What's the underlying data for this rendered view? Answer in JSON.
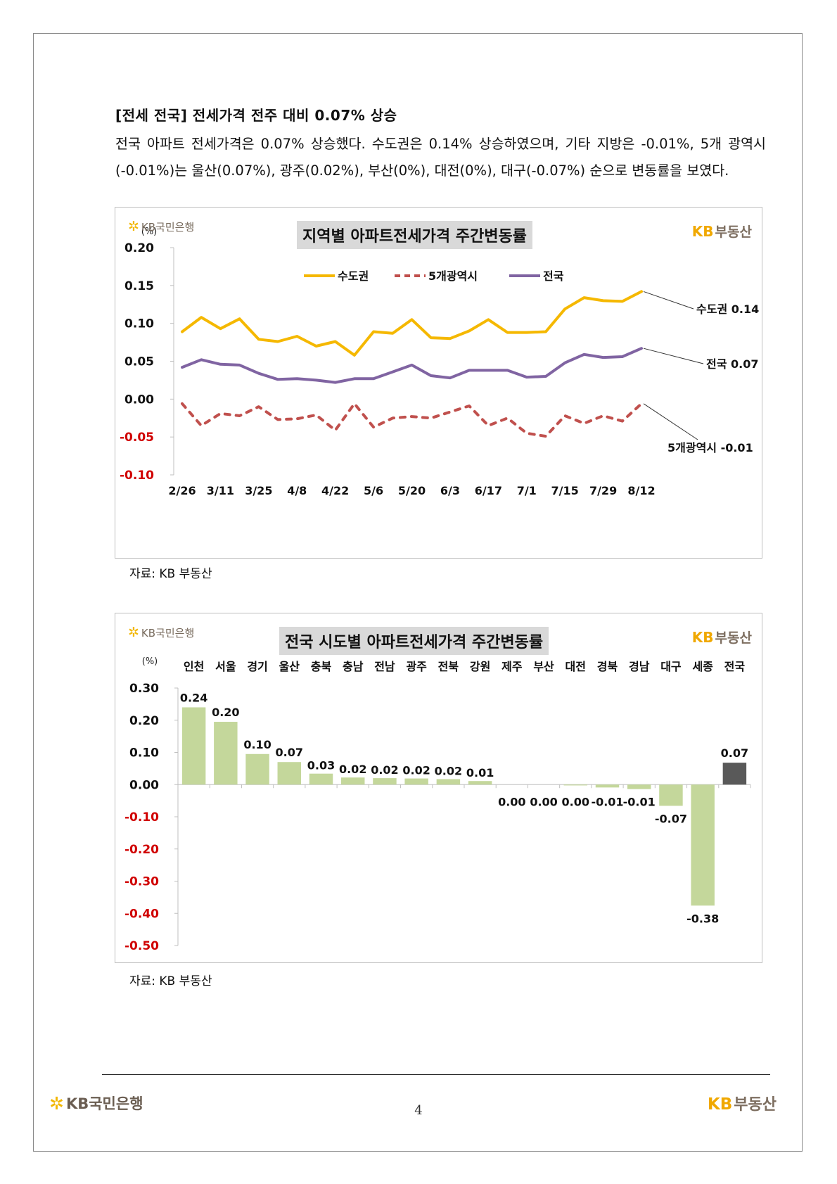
{
  "report": {
    "heading": "[전세 전국] 전세가격 전주 대비 0.07% 상승",
    "body": "전국 아파트 전세가격은 0.07% 상승했다. 수도권은 0.14% 상승하였으며, 기타 지방은 -0.01%, 5개 광역시(-0.01%)는 울산(0.07%), 광주(0.02%), 부산(0%), 대전(0%), 대구(-0.07%) 순으로 변동률을 보였다."
  },
  "branding": {
    "kb_bank": "KB국민은행",
    "kb_short": "KB",
    "realty_name": "부동산",
    "star_icon": "kb-star-icon"
  },
  "colors": {
    "sudogwon": "#f5b800",
    "metro5": "#c0504d",
    "national": "#8064a2",
    "bar_fill": "#c4d79b",
    "bar_national": "#595959",
    "negative_tick": "#d00000",
    "title_bg": "#d9d9d9"
  },
  "chart1_meta": {
    "source": "자료: KB 부동산"
  },
  "chart2_meta": {
    "source": "자료: KB 부동산"
  },
  "footer": {
    "page_number": "4"
  },
  "chart_data": [
    {
      "type": "line",
      "title": "지역별 아파트전세가격 주간변동률",
      "unit": "(%)",
      "ylim": [
        -0.1,
        0.2
      ],
      "yticks": [
        {
          "value": 0.2,
          "label": "0.20"
        },
        {
          "value": 0.15,
          "label": "0.15"
        },
        {
          "value": 0.1,
          "label": "0.10"
        },
        {
          "value": 0.05,
          "label": "0.05"
        },
        {
          "value": 0.0,
          "label": "0.00"
        },
        {
          "value": -0.05,
          "label": "-0.05"
        },
        {
          "value": -0.1,
          "label": "-0.10"
        }
      ],
      "x_count": 25,
      "xticks": [
        {
          "index": 0,
          "label": "2/26"
        },
        {
          "index": 2,
          "label": "3/11"
        },
        {
          "index": 4,
          "label": "3/25"
        },
        {
          "index": 6,
          "label": "4/8"
        },
        {
          "index": 8,
          "label": "4/22"
        },
        {
          "index": 10,
          "label": "5/6"
        },
        {
          "index": 12,
          "label": "5/20"
        },
        {
          "index": 14,
          "label": "6/3"
        },
        {
          "index": 16,
          "label": "6/17"
        },
        {
          "index": 18,
          "label": "7/1"
        },
        {
          "index": 20,
          "label": "7/15"
        },
        {
          "index": 22,
          "label": "7/29"
        },
        {
          "index": 24,
          "label": "8/12"
        }
      ],
      "legend_position": "top-center",
      "series": [
        {
          "key": "sudogwon",
          "name": "수도권",
          "style": "solid",
          "end_label": "수도권 0.14",
          "values": [
            0.089,
            0.108,
            0.093,
            0.106,
            0.079,
            0.076,
            0.083,
            0.07,
            0.076,
            0.058,
            0.089,
            0.087,
            0.105,
            0.081,
            0.08,
            0.09,
            0.105,
            0.088,
            0.088,
            0.089,
            0.119,
            0.134,
            0.13,
            0.129,
            0.142
          ]
        },
        {
          "key": "metro5",
          "name": "5개광역시",
          "style": "dashed",
          "end_label": "5개광역시 -0.01",
          "values": [
            -0.006,
            -0.035,
            -0.019,
            -0.022,
            -0.01,
            -0.027,
            -0.026,
            -0.021,
            -0.041,
            -0.006,
            -0.037,
            -0.025,
            -0.023,
            -0.025,
            -0.017,
            -0.009,
            -0.035,
            -0.025,
            -0.045,
            -0.049,
            -0.022,
            -0.032,
            -0.022,
            -0.029,
            -0.006
          ]
        },
        {
          "key": "national",
          "name": "전국",
          "style": "solid",
          "end_label": "전국 0.07",
          "values": [
            0.042,
            0.052,
            0.046,
            0.045,
            0.034,
            0.026,
            0.027,
            0.025,
            0.022,
            0.027,
            0.027,
            0.036,
            0.045,
            0.031,
            0.028,
            0.038,
            0.038,
            0.038,
            0.029,
            0.03,
            0.048,
            0.059,
            0.055,
            0.056,
            0.067
          ]
        }
      ]
    },
    {
      "type": "bar",
      "title": "전국 시도별 아파트전세가격 주간변동률",
      "unit": "(%)",
      "ylim": [
        -0.5,
        0.3
      ],
      "yticks": [
        {
          "value": 0.3,
          "label": "0.30"
        },
        {
          "value": 0.2,
          "label": "0.20"
        },
        {
          "value": 0.1,
          "label": "0.10"
        },
        {
          "value": 0.0,
          "label": "0.00"
        },
        {
          "value": -0.1,
          "label": "-0.10"
        },
        {
          "value": -0.2,
          "label": "-0.20"
        },
        {
          "value": -0.3,
          "label": "-0.30"
        },
        {
          "value": -0.4,
          "label": "-0.40"
        },
        {
          "value": -0.5,
          "label": "-0.50"
        }
      ],
      "categories": [
        "인천",
        "서울",
        "경기",
        "울산",
        "충북",
        "충남",
        "전남",
        "광주",
        "전북",
        "강원",
        "제주",
        "부산",
        "대전",
        "경북",
        "경남",
        "대구",
        "세종",
        "전국"
      ],
      "values": [
        0.24,
        0.195,
        0.095,
        0.07,
        0.034,
        0.022,
        0.02,
        0.019,
        0.017,
        0.011,
        0.0,
        0.0,
        -0.002,
        -0.009,
        -0.014,
        -0.066,
        -0.376,
        0.068
      ],
      "labels": [
        "0.24",
        "0.20",
        "0.10",
        "0.07",
        "0.03",
        "0.02",
        "0.02",
        "0.02",
        "0.02",
        "0.01",
        "0.00",
        "0.00",
        "0.00",
        "-0.01",
        "-0.01",
        "-0.07",
        "-0.38",
        "0.07"
      ],
      "highlight_index": 17
    }
  ]
}
